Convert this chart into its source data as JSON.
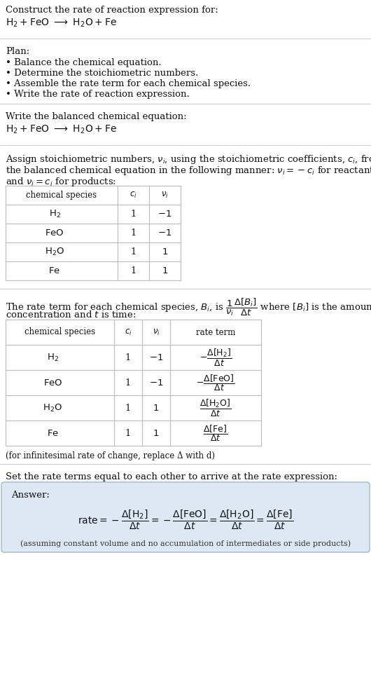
{
  "title_line1": "Construct the rate of reaction expression for:",
  "plan_header": "Plan:",
  "plan_items": [
    "• Balance the chemical equation.",
    "• Determine the stoichiometric numbers.",
    "• Assemble the rate term for each chemical species.",
    "• Write the rate of reaction expression."
  ],
  "balanced_header": "Write the balanced chemical equation:",
  "stoich_intro_line1": "Assign stoichiometric numbers, $\\nu_i$, using the stoichiometric coefficients, $c_i$, from",
  "stoich_intro_line2": "the balanced chemical equation in the following manner: $\\nu_i = -c_i$ for reactants",
  "stoich_intro_line3": "and $\\nu_i = c_i$ for products:",
  "table1_rows": [
    [
      "$\\mathrm{H_2}$",
      "1",
      "$-1$"
    ],
    [
      "$\\mathrm{FeO}$",
      "1",
      "$-1$"
    ],
    [
      "$\\mathrm{H_2O}$",
      "1",
      "$1$"
    ],
    [
      "$\\mathrm{Fe}$",
      "1",
      "$1$"
    ]
  ],
  "rate_intro_line1": "The rate term for each chemical species, $B_i$, is $\\dfrac{1}{\\nu_i}\\dfrac{\\Delta[B_i]}{\\Delta t}$ where $[B_i]$ is the amount",
  "rate_intro_line2": "concentration and $t$ is time:",
  "table2_rows": [
    [
      "$\\mathrm{H_2}$",
      "1",
      "$-1$",
      "$-\\dfrac{\\Delta[\\mathrm{H_2}]}{\\Delta t}$"
    ],
    [
      "$\\mathrm{FeO}$",
      "1",
      "$-1$",
      "$-\\dfrac{\\Delta[\\mathrm{FeO}]}{\\Delta t}$"
    ],
    [
      "$\\mathrm{H_2O}$",
      "1",
      "$1$",
      "$\\dfrac{\\Delta[\\mathrm{H_2O}]}{\\Delta t}$"
    ],
    [
      "$\\mathrm{Fe}$",
      "1",
      "$1$",
      "$\\dfrac{\\Delta[\\mathrm{Fe}]}{\\Delta t}$"
    ]
  ],
  "infinitesimal_note": "(for infinitesimal rate of change, replace Δ with d)",
  "set_equal_text": "Set the rate terms equal to each other to arrive at the rate expression:",
  "answer_label": "Answer:",
  "assumption_note": "(assuming constant volume and no accumulation of intermediates or side products)",
  "bg_color": "#ffffff",
  "table_line_color": "#bbbbbb",
  "answer_box_facecolor": "#dce9f5",
  "answer_box_edgecolor": "#a0b8cc",
  "text_color": "#111111",
  "font_family": "DejaVu Serif",
  "fs": 9.5,
  "fs_small": 8.5
}
